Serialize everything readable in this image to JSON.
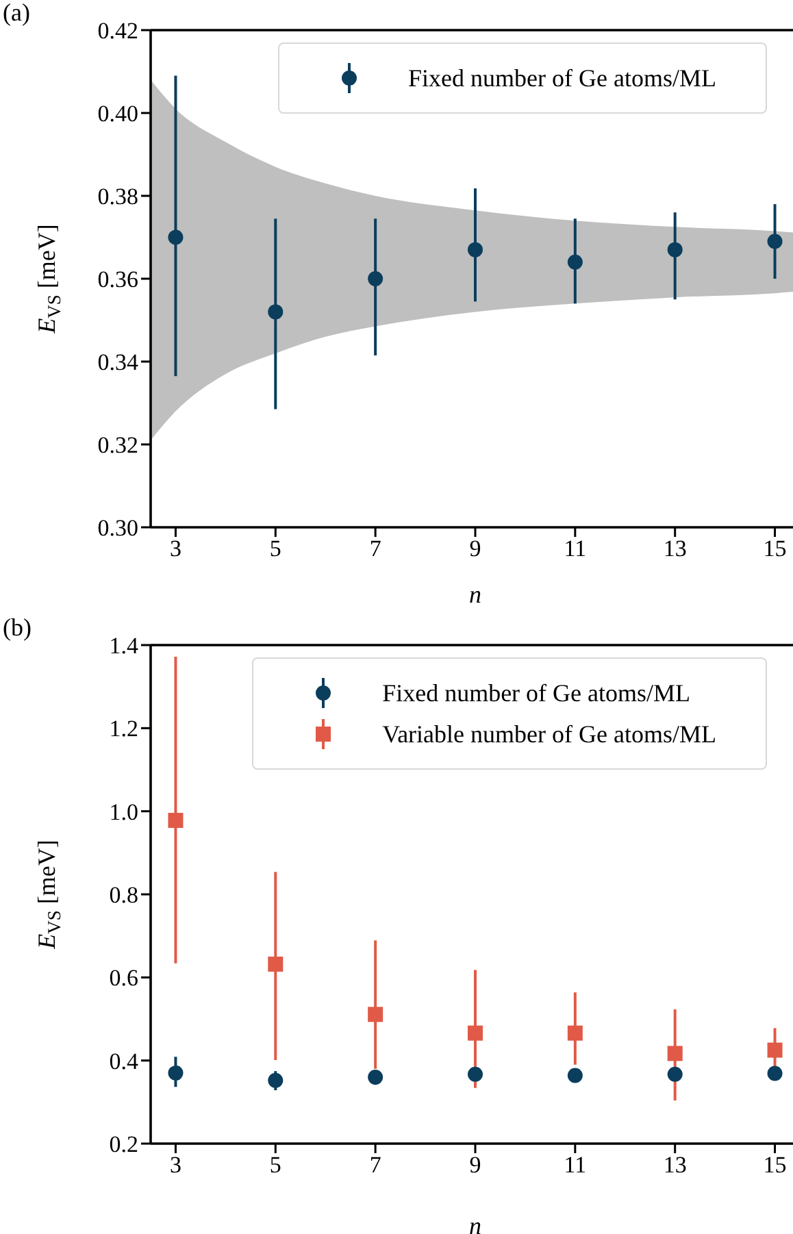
{
  "chart_data": [
    {
      "type": "scatter",
      "title": "(a)",
      "xlabel": "n",
      "ylabel": "E$_{VS}$ [meV]",
      "x": [
        3,
        5,
        7,
        9,
        11,
        13,
        15
      ],
      "xlim": [
        2.5,
        15.5
      ],
      "xticks": [
        3,
        5,
        7,
        9,
        11,
        13,
        15
      ],
      "ylim": [
        0.3,
        0.42
      ],
      "yticks": [
        {
          "value": 0.3,
          "label": "0.30"
        },
        {
          "value": 0.32,
          "label": "0.32"
        },
        {
          "value": 0.34,
          "label": "0.34"
        },
        {
          "value": 0.36,
          "label": "0.36"
        },
        {
          "value": 0.38,
          "label": "0.38"
        },
        {
          "value": 0.4,
          "label": "0.40"
        },
        {
          "value": 0.42,
          "label": "0.42"
        }
      ],
      "legend": "top right",
      "grid": false,
      "series": [
        {
          "type": "area",
          "color": "#bfbfbf",
          "x": [
            2.5,
            3,
            4,
            5,
            6,
            7,
            9,
            11,
            13,
            15,
            15.5
          ],
          "values": [
            null,
            null,
            null,
            null,
            null,
            null,
            null,
            null,
            null,
            null,
            null
          ],
          "lower": [
            0.321,
            0.328,
            0.337,
            0.342,
            0.346,
            0.3485,
            0.352,
            0.354,
            0.3555,
            0.3565,
            0.357
          ],
          "upper": [
            0.408,
            0.401,
            0.393,
            0.387,
            0.383,
            0.38,
            0.3765,
            0.374,
            0.3725,
            0.3715,
            0.371
          ]
        },
        {
          "name": "Fixed number of Ge atoms/ML",
          "marker": "circle",
          "color": "#0b3d5c",
          "values": [
            0.37,
            0.352,
            0.36,
            0.367,
            0.364,
            0.367,
            0.369
          ],
          "errors": [
            [
              0.3365,
              0.409
            ],
            [
              0.3285,
              0.3745
            ],
            [
              0.3415,
              0.3745
            ],
            [
              0.3545,
              0.3818
            ],
            [
              0.354,
              0.3745
            ],
            [
              0.355,
              0.376
            ],
            [
              0.36,
              0.378
            ]
          ]
        }
      ]
    },
    {
      "type": "scatter",
      "title": "(b)",
      "xlabel": "n",
      "ylabel": "E$_{VS}$ [meV]",
      "x": [
        3,
        5,
        7,
        9,
        11,
        13,
        15
      ],
      "xlim": [
        2.5,
        15.5
      ],
      "xticks": [
        3,
        5,
        7,
        9,
        11,
        13,
        15
      ],
      "ylim": [
        0.2,
        1.4
      ],
      "yticks": [
        {
          "value": 0.2,
          "label": "0.2"
        },
        {
          "value": 0.4,
          "label": "0.4"
        },
        {
          "value": 0.6,
          "label": "0.6"
        },
        {
          "value": 0.8,
          "label": "0.8"
        },
        {
          "value": 1.0,
          "label": "1.0"
        },
        {
          "value": 1.2,
          "label": "1.2"
        },
        {
          "value": 1.4,
          "label": "1.4"
        }
      ],
      "legend": "top right",
      "grid": false,
      "series": [
        {
          "name": "Fixed number of Ge atoms/ML",
          "marker": "circle",
          "color": "#0b3d5c",
          "values": [
            0.37,
            0.352,
            0.36,
            0.367,
            0.364,
            0.367,
            0.369
          ],
          "errors": [
            [
              0.3365,
              0.409
            ],
            [
              0.3285,
              0.3745
            ],
            [
              0.3415,
              0.3745
            ],
            [
              0.3545,
              0.3818
            ],
            [
              0.354,
              0.3745
            ],
            [
              0.355,
              0.376
            ],
            [
              0.36,
              0.378
            ]
          ]
        },
        {
          "name": "Variable number of Ge atoms/ML",
          "marker": "square",
          "color": "#e05a47",
          "values": [
            0.978,
            0.632,
            0.511,
            0.466,
            0.466,
            0.417,
            0.425
          ],
          "errors": [
            [
              0.634,
              1.372
            ],
            [
              0.401,
              0.854
            ],
            [
              0.38,
              0.689
            ],
            [
              0.334,
              0.618
            ],
            [
              0.39,
              0.564
            ],
            [
              0.304,
              0.523
            ],
            [
              0.386,
              0.478
            ]
          ]
        }
      ]
    }
  ]
}
